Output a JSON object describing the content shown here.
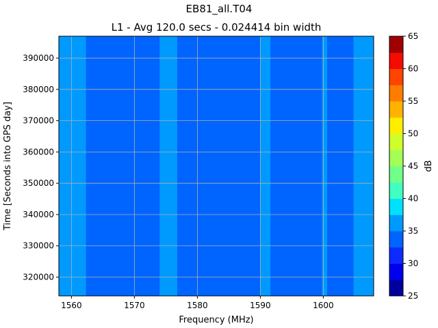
{
  "chart_data": {
    "type": "heatmap",
    "title": "EB81_all.T04",
    "subtitle": "L1 - Avg 120.0 secs - 0.024414 bin width",
    "xlabel": "Frequency (MHz)",
    "ylabel": "Time [Seconds into GPS day]",
    "colorbar_label": "dB",
    "xlim": [
      1558,
      1608
    ],
    "ylim": [
      314000,
      397000
    ],
    "xticks": [
      1560,
      1570,
      1580,
      1590,
      1600
    ],
    "yticks": [
      320000,
      330000,
      340000,
      350000,
      360000,
      370000,
      380000,
      390000
    ],
    "grid": true,
    "colormap": "jet",
    "colorbar_ticks": [
      25,
      30,
      35,
      40,
      45,
      50,
      55,
      60,
      65
    ],
    "colorbar_levels": [
      25,
      27.5,
      30,
      32.5,
      35,
      37.5,
      40,
      42.5,
      45,
      47.5,
      50,
      52.5,
      55,
      57.5,
      60,
      62.5,
      65
    ],
    "colorbar_colors": [
      "#00009f",
      "#0000ec",
      "#0e2bff",
      "#0064ff",
      "#009aff",
      "#00e0ff",
      "#40ffc0",
      "#70ff8b",
      "#a3ff55",
      "#cfff2a",
      "#ffee00",
      "#ffb300",
      "#ff7c00",
      "#ff4400",
      "#f50b00",
      "#a00000"
    ],
    "background_level_db": 33.5,
    "bands": [
      {
        "freq_start": 1558.0,
        "freq_end": 1562.3,
        "level_db": 36
      },
      {
        "freq_start": 1574.0,
        "freq_end": 1576.8,
        "level_db": 37
      },
      {
        "freq_start": 1590.0,
        "freq_end": 1591.6,
        "level_db": 36
      },
      {
        "freq_start": 1599.8,
        "freq_end": 1600.6,
        "level_db": 35
      },
      {
        "freq_start": 1604.8,
        "freq_end": 1605.6,
        "level_db": 36
      },
      {
        "freq_start": 1605.6,
        "freq_end": 1608.0,
        "level_db": 36.5
      }
    ]
  }
}
